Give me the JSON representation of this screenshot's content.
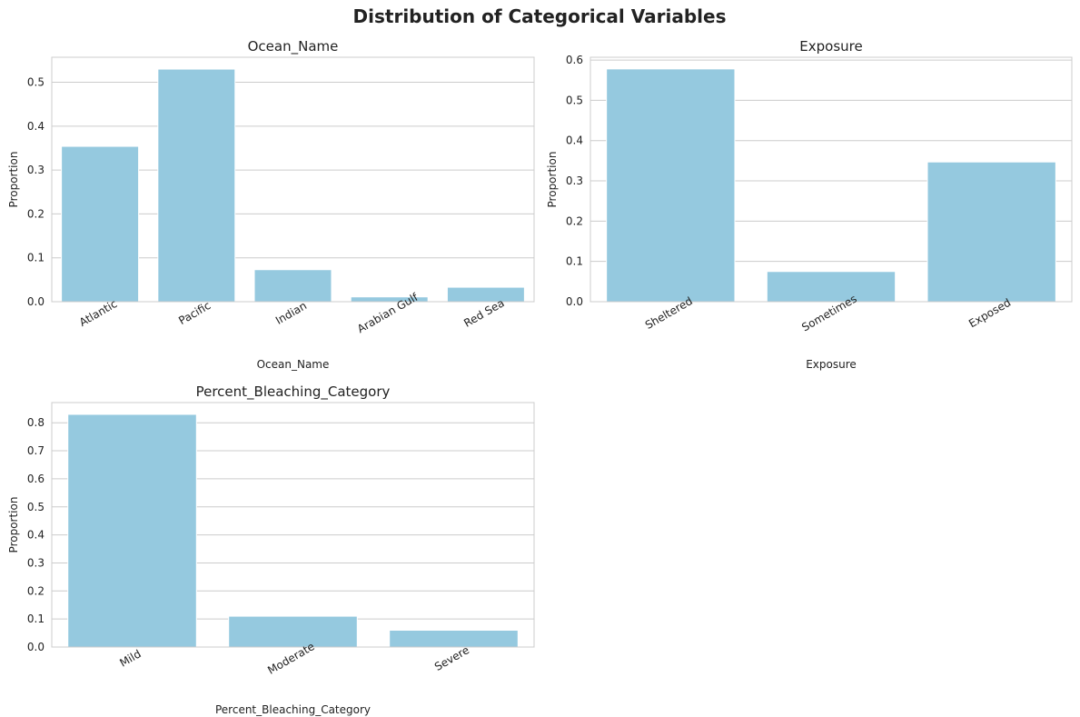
{
  "figure_title": "Distribution of Categorical Variables",
  "colors": {
    "bar": "#95c9df",
    "grid": "#cccccc",
    "text": "#222222"
  },
  "chart_data": [
    {
      "type": "bar",
      "title": "Ocean_Name",
      "xlabel": "Ocean_Name",
      "ylabel": "Proportion",
      "categories": [
        "Atlantic",
        "Pacific",
        "Indian",
        "Arabian Gulf",
        "Red Sea"
      ],
      "values": [
        0.354,
        0.53,
        0.073,
        0.011,
        0.033
      ],
      "ylim": [
        0,
        0.557
      ],
      "yticks": [
        0.0,
        0.1,
        0.2,
        0.3,
        0.4,
        0.5
      ],
      "ytick_labels": [
        "0.0",
        "0.1",
        "0.2",
        "0.3",
        "0.4",
        "0.5"
      ],
      "grid": true
    },
    {
      "type": "bar",
      "title": "Exposure",
      "xlabel": "Exposure",
      "ylabel": "Proportion",
      "categories": [
        "Sheltered",
        "Sometimes",
        "Exposed"
      ],
      "values": [
        0.578,
        0.075,
        0.347
      ],
      "ylim": [
        0,
        0.607
      ],
      "yticks": [
        0.0,
        0.1,
        0.2,
        0.3,
        0.4,
        0.5,
        0.6
      ],
      "ytick_labels": [
        "0.0",
        "0.1",
        "0.2",
        "0.3",
        "0.4",
        "0.5",
        "0.6"
      ],
      "grid": true
    },
    {
      "type": "bar",
      "title": "Percent_Bleaching_Category",
      "xlabel": "Percent_Bleaching_Category",
      "ylabel": "Proportion",
      "categories": [
        "Mild",
        "Moderate",
        "Severe"
      ],
      "values": [
        0.83,
        0.11,
        0.06
      ],
      "ylim": [
        0,
        0.872
      ],
      "yticks": [
        0.0,
        0.1,
        0.2,
        0.3,
        0.4,
        0.5,
        0.6,
        0.7,
        0.8
      ],
      "ytick_labels": [
        "0.0",
        "0.1",
        "0.2",
        "0.3",
        "0.4",
        "0.5",
        "0.6",
        "0.7",
        "0.8"
      ],
      "grid": true
    }
  ]
}
